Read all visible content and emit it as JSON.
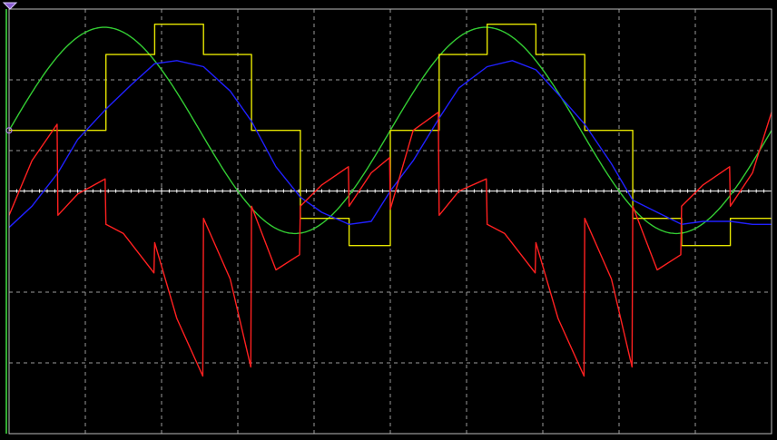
{
  "chart_data": {
    "type": "line",
    "title": "",
    "xlabel": "",
    "ylabel": "",
    "xlim": [
      0,
      10
    ],
    "ylim": [
      -4,
      3
    ],
    "grid": true,
    "legend": "none",
    "channel_colors": {
      "sine": "#33cc33",
      "sampled": "#e6e600",
      "filtered": "#2020ff",
      "error": "#ff2020",
      "reference": "#ffffff"
    },
    "series": [
      {
        "name": "",
        "color": "#33cc33",
        "kind": "sine",
        "amplitude": 1.7,
        "offset": 1.0,
        "period": 5.0,
        "phase": 0.0
      },
      {
        "name": "",
        "color": "#e6e600",
        "kind": "step",
        "x": [
          0.0,
          0.64,
          1.27,
          1.91,
          2.55,
          3.18,
          3.82,
          4.46,
          5.0,
          5.64,
          6.27,
          6.91,
          7.55,
          8.18,
          8.82,
          9.46,
          10.0
        ],
        "values": [
          1.0,
          1.0,
          2.25,
          2.75,
          2.25,
          1.0,
          -0.45,
          -0.9,
          1.0,
          2.25,
          2.75,
          2.25,
          1.0,
          -0.45,
          -0.9,
          -0.45,
          -0.45
        ]
      },
      {
        "name": "",
        "color": "#2020ff",
        "x": [
          0.0,
          0.3,
          0.64,
          0.9,
          1.27,
          1.6,
          1.91,
          2.2,
          2.55,
          2.9,
          3.18,
          3.5,
          3.82,
          4.1,
          4.46,
          4.75,
          5.0,
          5.3,
          5.64,
          5.9,
          6.27,
          6.6,
          6.91,
          7.2,
          7.55,
          7.9,
          8.18,
          8.5,
          8.82,
          9.1,
          9.46,
          9.75,
          10.0
        ],
        "values": [
          -0.6,
          -0.25,
          0.3,
          0.85,
          1.35,
          1.75,
          2.1,
          2.15,
          2.05,
          1.65,
          1.15,
          0.4,
          -0.1,
          -0.35,
          -0.55,
          -0.5,
          0.0,
          0.5,
          1.2,
          1.7,
          2.05,
          2.15,
          2.0,
          1.6,
          1.1,
          0.45,
          -0.15,
          -0.35,
          -0.55,
          -0.5,
          -0.5,
          -0.55,
          -0.55
        ]
      },
      {
        "name": "",
        "color": "#ff2020",
        "x": [
          0.0,
          0.3,
          0.63,
          0.64,
          0.9,
          1.26,
          1.27,
          1.5,
          1.9,
          1.91,
          2.2,
          2.54,
          2.55,
          2.9,
          3.17,
          3.18,
          3.5,
          3.81,
          3.82,
          4.1,
          4.45,
          4.46,
          4.75,
          4.99,
          5.0,
          5.3,
          5.63,
          5.64,
          5.9,
          6.26,
          6.27,
          6.5,
          6.9,
          6.91,
          7.2,
          7.54,
          7.55,
          7.9,
          8.17,
          8.18,
          8.5,
          8.81,
          8.82,
          9.1,
          9.45,
          9.46,
          9.75,
          10.0
        ],
        "values": [
          -0.4,
          0.5,
          1.1,
          -0.4,
          -0.05,
          0.2,
          -0.55,
          -0.7,
          -1.35,
          -0.85,
          -2.1,
          -3.05,
          -0.45,
          -1.45,
          -2.9,
          -0.25,
          -1.3,
          -1.05,
          -0.25,
          0.1,
          0.4,
          -0.25,
          0.3,
          0.55,
          -0.3,
          1.0,
          1.3,
          -0.4,
          0.0,
          0.2,
          -0.55,
          -0.7,
          -1.35,
          -0.85,
          -2.1,
          -3.05,
          -0.45,
          -1.45,
          -2.9,
          -0.25,
          -1.3,
          -1.05,
          -0.25,
          0.1,
          0.4,
          -0.25,
          0.3,
          1.3
        ]
      }
    ]
  }
}
